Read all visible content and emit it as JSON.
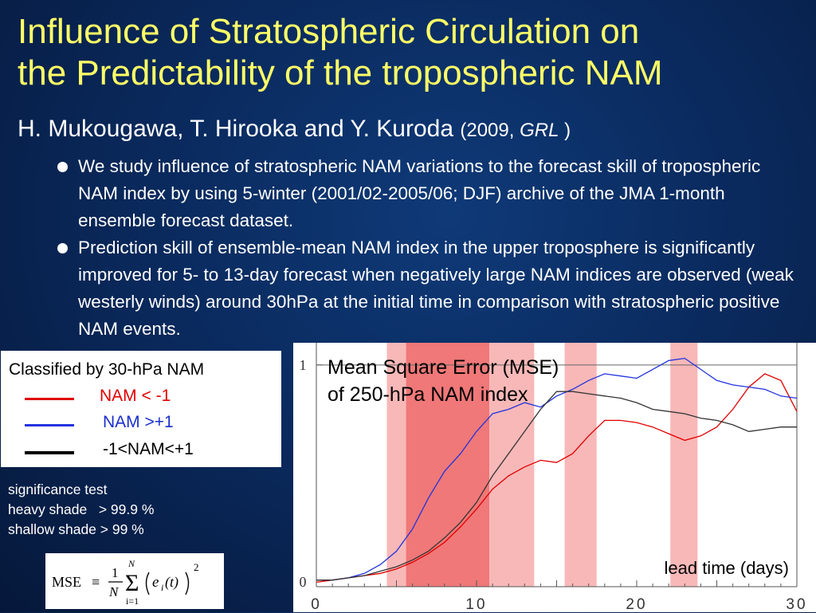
{
  "slide": {
    "title_line1": "Influence of Stratospheric Circulation on",
    "title_line2": "the Predictability of the tropospheric NAM",
    "authors": "H. Mukougawa, T. Hirooka and Y. Kuroda",
    "cite_year": "(2009,",
    "cite_journal": "GRL",
    "cite_close": ")",
    "bullets": [
      "We study influence of stratospheric NAM variations to the forecast skill of tropospheric NAM index by using 5-winter (2001/02-2005/06; DJF) archive of the JMA 1-month ensemble forecast dataset.",
      "Prediction skill of ensemble-mean NAM index in the upper troposphere is significantly improved for 5- to 13-day forecast when negatively large NAM indices are observed (weak westerly winds) around 30hPa at the initial time in comparison with stratospheric positive NAM events."
    ]
  },
  "legend": {
    "header": "Classified by 30-hPa NAM",
    "items": [
      {
        "label": "NAM < -1",
        "color": "#e00000",
        "text_color": "#e00000"
      },
      {
        "label": "NAM >+1",
        "color": "#2233dd",
        "text_color": "#1a2fcc"
      },
      {
        "label": "-1<NAM<+1",
        "color": "#000000",
        "text_color": "#000000"
      }
    ]
  },
  "significance": {
    "line1": "significance test",
    "line2": "heavy shade   > 99.9 %",
    "line3": "shallow shade > 99 %"
  },
  "formula": {
    "lhs": "MSE",
    "equiv": "≡",
    "frac_num": "1",
    "frac_den": "N",
    "sum_upper": "N",
    "sum_lower": "i=1",
    "term": "e",
    "term_sub": "i",
    "term_arg": "(t)",
    "power": "2"
  },
  "chart": {
    "title_line1": "Mean Square Error (MSE)",
    "title_line2": "of 250-hPa NAM index",
    "xlabel": "lead time (days)"
  },
  "chart_data": {
    "type": "line",
    "title": "Mean Square Error (MSE) of 250-hPa NAM index",
    "xlabel": "lead time (days)",
    "ylabel": "",
    "xlim": [
      0,
      30
    ],
    "ylim": [
      0,
      1.1
    ],
    "x_ticks": [
      0,
      10,
      20,
      30
    ],
    "y_ticks": [
      0,
      1
    ],
    "reference_line_y": 1,
    "shaded_regions": [
      {
        "from": 4.4,
        "to": 5.6,
        "level": "> 99 %",
        "color": "#f8b8b8"
      },
      {
        "from": 5.6,
        "to": 10.8,
        "level": "> 99.9 %",
        "color": "#f07878"
      },
      {
        "from": 10.8,
        "to": 13.6,
        "level": "> 99 %",
        "color": "#f8b8b8"
      },
      {
        "from": 15.5,
        "to": 17.5,
        "level": "> 99 %",
        "color": "#f8b8b8"
      },
      {
        "from": 22.1,
        "to": 23.8,
        "level": "> 99 %",
        "color": "#f8b8b8"
      }
    ],
    "x": [
      0,
      1,
      2,
      3,
      4,
      5,
      6,
      7,
      8,
      9,
      10,
      11,
      12,
      13,
      14,
      15,
      16,
      17,
      18,
      19,
      20,
      21,
      22,
      23,
      24,
      25,
      26,
      27,
      28,
      29,
      30
    ],
    "series": [
      {
        "name": "NAM < -1",
        "color": "#e00000",
        "values": [
          0.02,
          0.03,
          0.04,
          0.05,
          0.06,
          0.08,
          0.11,
          0.15,
          0.2,
          0.27,
          0.35,
          0.44,
          0.5,
          0.54,
          0.57,
          0.56,
          0.6,
          0.68,
          0.75,
          0.75,
          0.74,
          0.72,
          0.69,
          0.66,
          0.68,
          0.72,
          0.8,
          0.9,
          0.96,
          0.93,
          0.79
        ]
      },
      {
        "name": "NAM >+1",
        "color": "#2233dd",
        "values": [
          0.03,
          0.03,
          0.04,
          0.06,
          0.1,
          0.16,
          0.26,
          0.4,
          0.52,
          0.6,
          0.7,
          0.78,
          0.8,
          0.83,
          0.81,
          0.86,
          0.89,
          0.93,
          0.96,
          0.95,
          0.94,
          0.98,
          1.02,
          1.03,
          0.98,
          0.93,
          0.91,
          0.9,
          0.89,
          0.86,
          0.85
        ]
      },
      {
        "name": "-1<NAM<+1",
        "color": "#333333",
        "values": [
          0.03,
          0.03,
          0.04,
          0.05,
          0.07,
          0.09,
          0.12,
          0.16,
          0.22,
          0.29,
          0.38,
          0.5,
          0.6,
          0.7,
          0.8,
          0.88,
          0.88,
          0.87,
          0.86,
          0.85,
          0.83,
          0.8,
          0.79,
          0.78,
          0.76,
          0.75,
          0.73,
          0.7,
          0.71,
          0.72,
          0.72
        ]
      }
    ]
  }
}
